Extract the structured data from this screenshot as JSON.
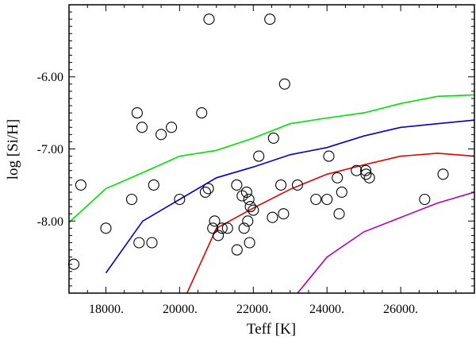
{
  "chart_data": {
    "type": "scatter",
    "title": "",
    "xlabel": "Teff [K]",
    "ylabel": "log [Si/H]",
    "xlim": [
      17000,
      28000
    ],
    "ylim": [
      -9.0,
      -5.0
    ],
    "x_ticks": [
      18000,
      20000,
      22000,
      24000,
      26000
    ],
    "x_tick_labels": [
      "18000.",
      "20000.",
      "22000.",
      "24000.",
      "26000."
    ],
    "y_ticks": [
      -6.0,
      -7.0,
      -8.0
    ],
    "y_tick_labels": [
      "-6.00",
      "-7.00",
      "-8.00"
    ],
    "grid": false,
    "colors": {
      "green": "#00e000",
      "blue": "#0000cc",
      "red": "#e00000",
      "magenta": "#b000b0",
      "axis": "#000000"
    },
    "points": [
      [
        17130,
        -8.6
      ],
      [
        17320,
        -7.5
      ],
      [
        18000,
        -8.1
      ],
      [
        18700,
        -7.7
      ],
      [
        18850,
        -6.5
      ],
      [
        18900,
        -8.3
      ],
      [
        18980,
        -6.7
      ],
      [
        19250,
        -8.3
      ],
      [
        19300,
        -7.5
      ],
      [
        19500,
        -6.8
      ],
      [
        19780,
        -6.7
      ],
      [
        20000,
        -7.7
      ],
      [
        20600,
        -6.5
      ],
      [
        20700,
        -7.6
      ],
      [
        20780,
        -7.55
      ],
      [
        20800,
        -5.2
      ],
      [
        20900,
        -8.1
      ],
      [
        20950,
        -8.0
      ],
      [
        21050,
        -8.2
      ],
      [
        21150,
        -8.1
      ],
      [
        21300,
        -8.1
      ],
      [
        21550,
        -7.5
      ],
      [
        21560,
        -8.4
      ],
      [
        21700,
        -7.65
      ],
      [
        21750,
        -8.1
      ],
      [
        21820,
        -7.6
      ],
      [
        21850,
        -8.0
      ],
      [
        21880,
        -7.7
      ],
      [
        21900,
        -8.3
      ],
      [
        21920,
        -7.8
      ],
      [
        22000,
        -7.85
      ],
      [
        22150,
        -7.1
      ],
      [
        22450,
        -5.2
      ],
      [
        22520,
        -7.95
      ],
      [
        22550,
        -6.85
      ],
      [
        22750,
        -7.5
      ],
      [
        22820,
        -7.9
      ],
      [
        22850,
        -6.1
      ],
      [
        23200,
        -7.5
      ],
      [
        23700,
        -7.7
      ],
      [
        24000,
        -7.7
      ],
      [
        24050,
        -7.1
      ],
      [
        24280,
        -7.4
      ],
      [
        24330,
        -7.9
      ],
      [
        24400,
        -7.6
      ],
      [
        24800,
        -7.3
      ],
      [
        25050,
        -7.3
      ],
      [
        25060,
        -7.35
      ],
      [
        25150,
        -7.4
      ],
      [
        26650,
        -7.7
      ],
      [
        27150,
        -7.35
      ]
    ],
    "series": [
      {
        "name": "green",
        "color": "#00e000",
        "x": [
          17000,
          18000,
          19000,
          20000,
          21000,
          22000,
          23000,
          24000,
          25000,
          26000,
          27000,
          28000
        ],
        "y": [
          -8.02,
          -7.55,
          -7.33,
          -7.1,
          -7.02,
          -6.85,
          -6.65,
          -6.57,
          -6.5,
          -6.37,
          -6.27,
          -6.25
        ]
      },
      {
        "name": "blue",
        "color": "#0000cc",
        "x": [
          18000,
          19000,
          20000,
          21000,
          22000,
          23000,
          24000,
          25000,
          26000,
          27000,
          28000
        ],
        "y": [
          -8.72,
          -8.0,
          -7.7,
          -7.4,
          -7.25,
          -7.08,
          -6.98,
          -6.82,
          -6.7,
          -6.65,
          -6.6
        ]
      },
      {
        "name": "red",
        "color": "#e00000",
        "x": [
          20200,
          21000,
          22000,
          23000,
          24000,
          25000,
          26000,
          27000,
          28000
        ],
        "y": [
          -9.0,
          -8.1,
          -7.82,
          -7.56,
          -7.35,
          -7.22,
          -7.1,
          -7.06,
          -7.1
        ]
      },
      {
        "name": "magenta",
        "color": "#b000b0",
        "x": [
          23200,
          24000,
          25000,
          26000,
          27000,
          28000
        ],
        "y": [
          -9.0,
          -8.5,
          -8.15,
          -7.95,
          -7.75,
          -7.6
        ]
      }
    ]
  }
}
